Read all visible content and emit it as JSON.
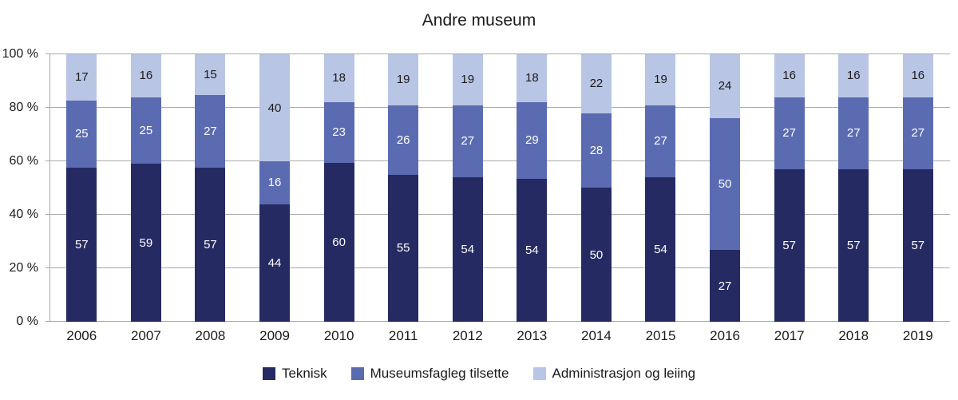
{
  "chart_data": {
    "type": "bar",
    "stacked": true,
    "percent_axis": true,
    "title": "Andre museum",
    "categories": [
      "2006",
      "2007",
      "2008",
      "2009",
      "2010",
      "2011",
      "2012",
      "2013",
      "2014",
      "2015",
      "2016",
      "2017",
      "2018",
      "2019"
    ],
    "series": [
      {
        "name": "Teknisk",
        "color": "#262a63",
        "label_color": "#ffffff",
        "values": [
          57,
          59,
          57,
          44,
          60,
          55,
          54,
          54,
          50,
          54,
          27,
          57,
          57,
          57
        ]
      },
      {
        "name": "Museumsfagleg tilsette",
        "color": "#5b6bb2",
        "label_color": "#ffffff",
        "values": [
          25,
          25,
          27,
          16,
          23,
          26,
          27,
          29,
          28,
          27,
          50,
          27,
          27,
          27
        ]
      },
      {
        "name": "Administrasjon og leiing",
        "color": "#b9c5e4",
        "label_color": "#1a1a1a",
        "values": [
          17,
          16,
          15,
          40,
          18,
          19,
          19,
          18,
          22,
          19,
          24,
          16,
          16,
          16
        ]
      }
    ],
    "y_ticks": [
      {
        "value": 0,
        "label": "0 %"
      },
      {
        "value": 20,
        "label": "20 %"
      },
      {
        "value": 40,
        "label": "40 %"
      },
      {
        "value": 60,
        "label": "60 %"
      },
      {
        "value": 80,
        "label": "80 %"
      },
      {
        "value": 100,
        "label": "100 %"
      }
    ],
    "ylim": [
      0,
      100
    ],
    "grid": true,
    "legend_position": "bottom"
  }
}
